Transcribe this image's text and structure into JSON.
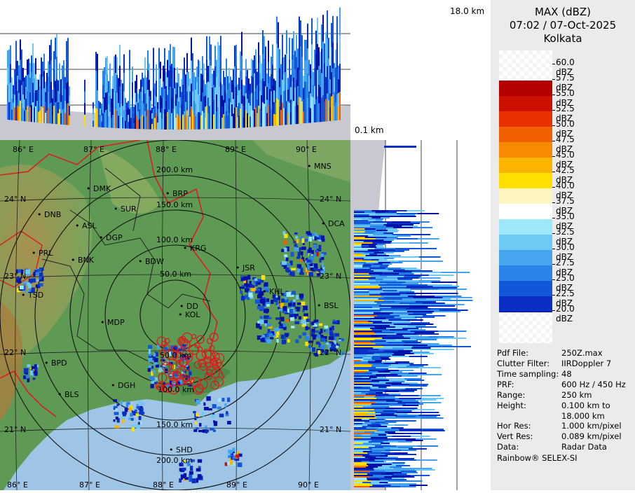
{
  "product": {
    "title": "MAX (dBZ)",
    "datetime": "07:02 / 07-Oct-2025",
    "station": "Kolkata"
  },
  "height_labels": {
    "top": "18.0 km",
    "bottom": "0.1 km"
  },
  "colorbar": [
    {
      "label": "60.0 dBZ",
      "color": ""
    },
    {
      "label": "57.5 dBZ",
      "color": "#b40000"
    },
    {
      "label": "55.0 dBZ",
      "color": "#cc1100"
    },
    {
      "label": "52.5 dBZ",
      "color": "#e83000"
    },
    {
      "label": "50.0 dBZ",
      "color": "#f06000"
    },
    {
      "label": "47.5 dBZ",
      "color": "#f88a00"
    },
    {
      "label": "45.0 dBZ",
      "color": "#fbb400"
    },
    {
      "label": "42.5 dBZ",
      "color": "#fde000"
    },
    {
      "label": "40.0 dBZ",
      "color": "#fdf5c0"
    },
    {
      "label": "37.5 dBZ",
      "color": "#ffffff"
    },
    {
      "label": "35.0 dBZ",
      "color": "#9ee8fb"
    },
    {
      "label": "32.5 dBZ",
      "color": "#6ecaf5"
    },
    {
      "label": "30.0 dBZ",
      "color": "#45a6ef"
    },
    {
      "label": "27.5 dBZ",
      "color": "#2a83e6"
    },
    {
      "label": "25.0 dBZ",
      "color": "#1257d8"
    },
    {
      "label": "22.5 dBZ",
      "color": "#0a2fc2"
    },
    {
      "label": "20.0 dBZ",
      "color": "#0012a8"
    }
  ],
  "info": [
    {
      "key": "Pdf File:",
      "value": "250Z.max"
    },
    {
      "key": "Clutter Filter:",
      "value": "IIRDoppler 7"
    },
    {
      "key": "Time sampling:",
      "value": "48"
    },
    {
      "key": "PRF:",
      "value": "600 Hz / 450 Hz"
    },
    {
      "key": "Range:",
      "value": "250 km"
    },
    {
      "key": "Height:",
      "value": "0.100 km to"
    },
    {
      "key": "",
      "value": "18.000 km"
    },
    {
      "key": "Hor Res:",
      "value": "1.000 km/pixel"
    },
    {
      "key": "Vert Res:",
      "value": "0.089 km/pixel"
    },
    {
      "key": "Data:",
      "value": "Radar Data"
    }
  ],
  "footer": "Rainbow® SELEX-SI",
  "lon_labels": [
    "86° E",
    "87° E",
    "88° E",
    "89° E",
    "90° E"
  ],
  "lat_labels": [
    "24° N",
    "23° N",
    "22° N",
    "21° N"
  ],
  "range_labels": [
    "200.0 km",
    "150.0 km",
    "100.0 km",
    "50.0 km",
    "50.0 km",
    "100.0 km",
    "150.0 km",
    "200.0 km"
  ],
  "cities": [
    "MNS",
    "DMK",
    "BRP",
    "DNB",
    "SUR",
    "ASL",
    "DGP",
    "DCA",
    "KRG",
    "PRL",
    "BNK",
    "BDW",
    "JSR",
    "TSD",
    "KHL",
    "BSL",
    "DD",
    "KOL",
    "MDP",
    "BPD",
    "DGH",
    "BLS",
    "SHD"
  ],
  "colors": {
    "land": "#5f9a54",
    "hills": "#a88a45",
    "sea": "#9ec4e6",
    "border": "#d81e1e",
    "district": "#222222",
    "ring": "#111111",
    "panel": "#ebebeb"
  }
}
